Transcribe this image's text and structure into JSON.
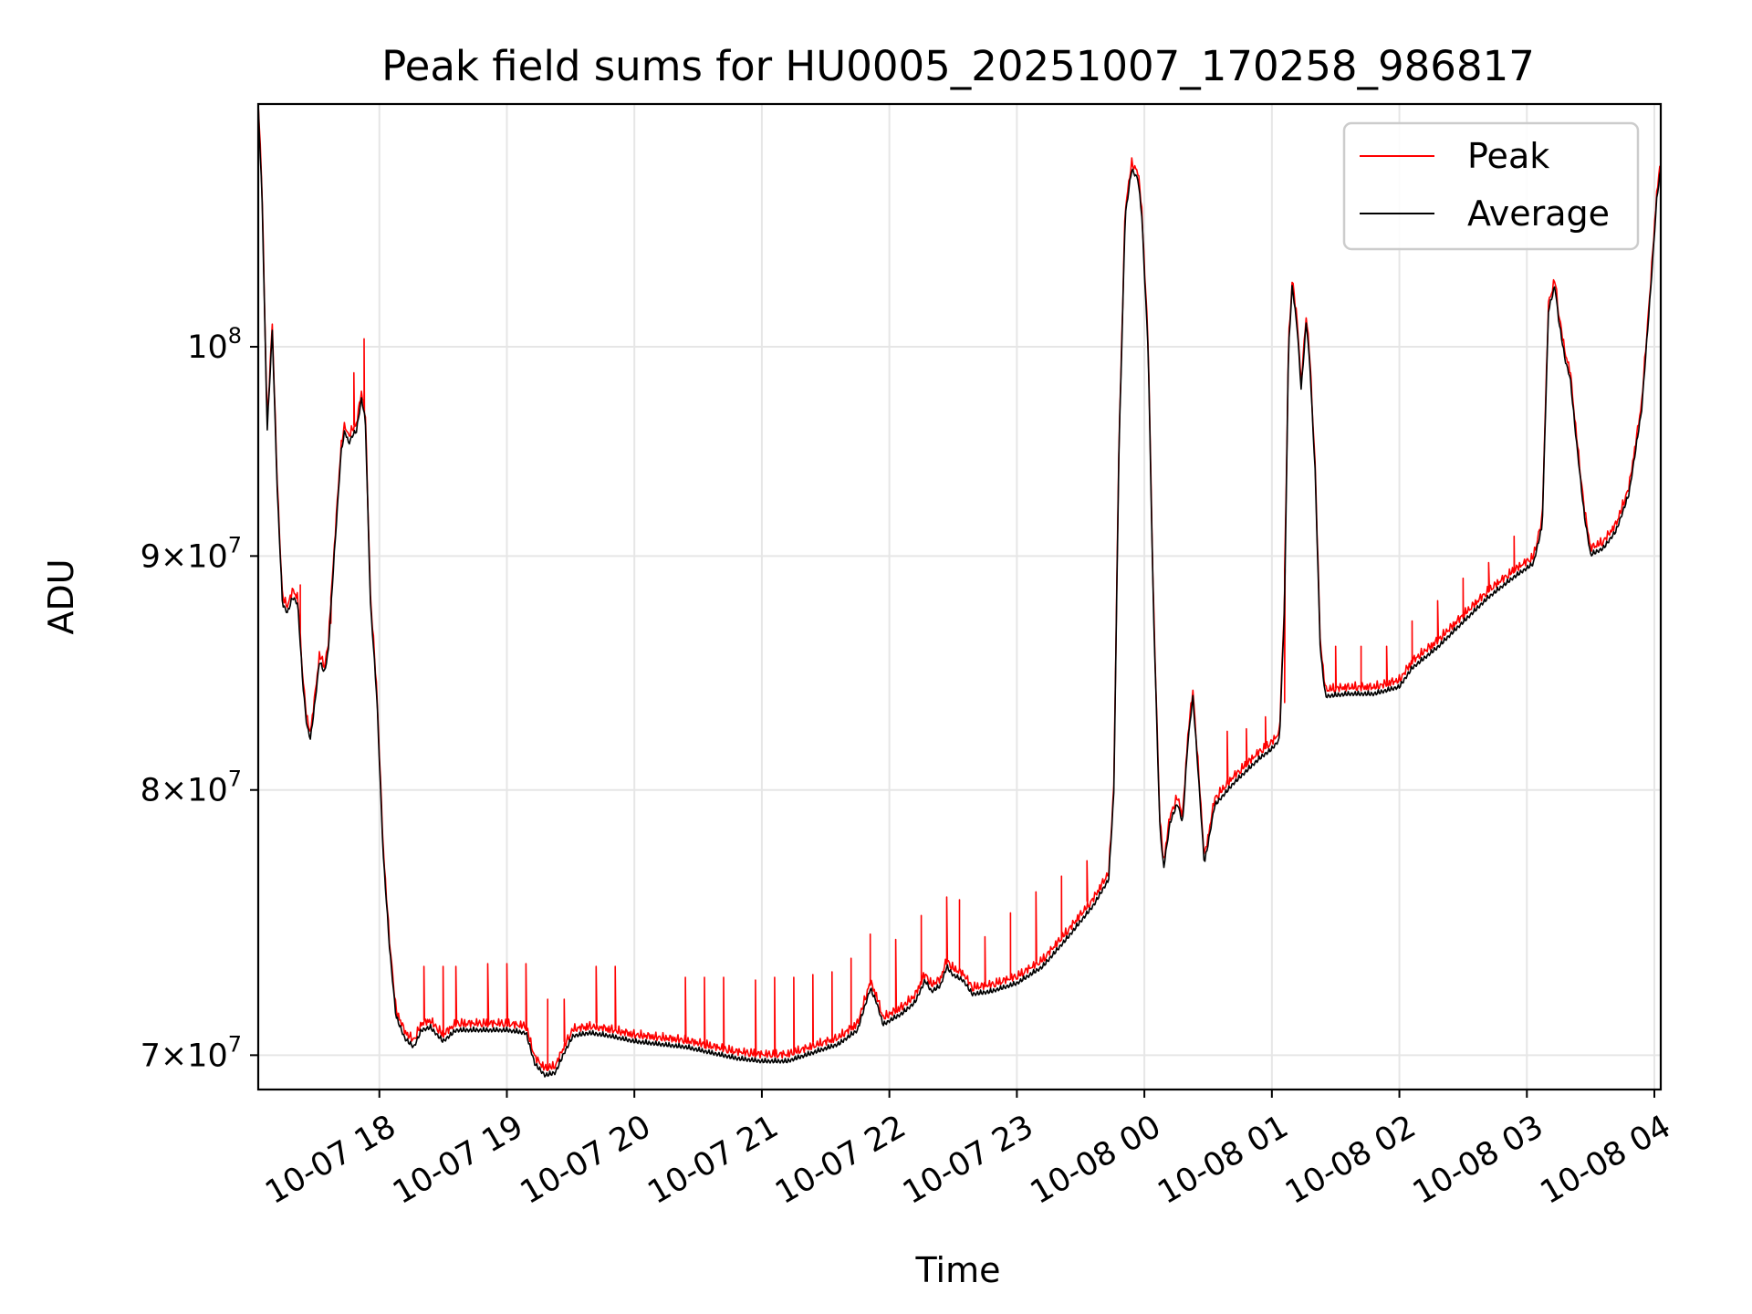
{
  "chart_data": {
    "type": "line",
    "title": "Peak field sums for HU0005_20251007_170258_986817",
    "xlabel": "Time",
    "ylabel": "ADU",
    "y_scale": "log",
    "xlim_hours": [
      17.05,
      28.05
    ],
    "ylim": [
      68800000,
      113000000
    ],
    "grid": true,
    "legend_position": "top-right",
    "x_ticks": [
      {
        "hour": 18,
        "label": "10-07 18"
      },
      {
        "hour": 19,
        "label": "10-07 19"
      },
      {
        "hour": 20,
        "label": "10-07 20"
      },
      {
        "hour": 21,
        "label": "10-07 21"
      },
      {
        "hour": 22,
        "label": "10-07 22"
      },
      {
        "hour": 23,
        "label": "10-07 23"
      },
      {
        "hour": 24,
        "label": "10-08 00"
      },
      {
        "hour": 25,
        "label": "10-08 01"
      },
      {
        "hour": 26,
        "label": "10-08 02"
      },
      {
        "hour": 27,
        "label": "10-08 03"
      },
      {
        "hour": 28,
        "label": "10-08 04"
      }
    ],
    "y_ticks": [
      {
        "value": 70000000,
        "mantissa": "7",
        "base": "10",
        "exp": "7"
      },
      {
        "value": 80000000,
        "mantissa": "8",
        "base": "10",
        "exp": "7"
      },
      {
        "value": 90000000,
        "mantissa": "9",
        "base": "10",
        "exp": "7"
      },
      {
        "value": 100000000,
        "mantissa": "",
        "base": "10",
        "exp": "8"
      }
    ],
    "series": [
      {
        "name": "Peak",
        "color": "#ff0000",
        "spikes": [
          [
            17.88,
            100400000
          ],
          [
            17.8,
            98700000
          ],
          [
            17.62,
            87000000
          ],
          [
            17.38,
            88700000
          ],
          [
            18.35,
            73200000
          ],
          [
            18.5,
            73200000
          ],
          [
            18.6,
            73200000
          ],
          [
            18.85,
            73300000
          ],
          [
            19.0,
            73300000
          ],
          [
            19.15,
            73300000
          ],
          [
            19.32,
            72000000
          ],
          [
            19.45,
            72000000
          ],
          [
            19.7,
            73200000
          ],
          [
            19.85,
            73200000
          ],
          [
            20.4,
            72800000
          ],
          [
            20.55,
            72800000
          ],
          [
            20.7,
            72800000
          ],
          [
            20.95,
            72700000
          ],
          [
            21.1,
            72800000
          ],
          [
            21.25,
            72800000
          ],
          [
            21.4,
            72900000
          ],
          [
            21.55,
            73000000
          ],
          [
            21.7,
            73500000
          ],
          [
            21.85,
            74400000
          ],
          [
            22.05,
            74200000
          ],
          [
            22.25,
            75100000
          ],
          [
            22.45,
            75800000
          ],
          [
            22.55,
            75700000
          ],
          [
            22.75,
            74300000
          ],
          [
            22.95,
            75200000
          ],
          [
            23.15,
            76000000
          ],
          [
            23.35,
            76600000
          ],
          [
            23.55,
            77200000
          ],
          [
            24.65,
            82400000
          ],
          [
            24.8,
            82500000
          ],
          [
            24.95,
            83000000
          ],
          [
            25.1,
            83600000
          ],
          [
            25.5,
            86000000
          ],
          [
            25.7,
            86000000
          ],
          [
            25.9,
            86000000
          ],
          [
            26.1,
            87100000
          ],
          [
            26.3,
            88000000
          ],
          [
            26.5,
            89000000
          ],
          [
            26.7,
            89700000
          ],
          [
            26.9,
            90900000
          ]
        ]
      },
      {
        "name": "Average",
        "color": "#000000",
        "points": [
          [
            17.05,
            113000000
          ],
          [
            17.08,
            108000000
          ],
          [
            17.12,
            96000000
          ],
          [
            17.16,
            101000000
          ],
          [
            17.2,
            93000000
          ],
          [
            17.24,
            88000000
          ],
          [
            17.28,
            87600000
          ],
          [
            17.32,
            88300000
          ],
          [
            17.36,
            88000000
          ],
          [
            17.4,
            84500000
          ],
          [
            17.43,
            82800000
          ],
          [
            17.46,
            82200000
          ],
          [
            17.5,
            84000000
          ],
          [
            17.53,
            85500000
          ],
          [
            17.57,
            85000000
          ],
          [
            17.6,
            86000000
          ],
          [
            17.65,
            90500000
          ],
          [
            17.7,
            95000000
          ],
          [
            17.73,
            96000000
          ],
          [
            17.76,
            95400000
          ],
          [
            17.79,
            95800000
          ],
          [
            17.82,
            96000000
          ],
          [
            17.86,
            97600000
          ],
          [
            17.89,
            96500000
          ],
          [
            17.93,
            88000000
          ],
          [
            17.98,
            84000000
          ],
          [
            18.03,
            77600000
          ],
          [
            18.08,
            74000000
          ],
          [
            18.13,
            71500000
          ],
          [
            18.2,
            70700000
          ],
          [
            18.27,
            70400000
          ],
          [
            18.33,
            71000000
          ],
          [
            18.4,
            71100000
          ],
          [
            18.5,
            70600000
          ],
          [
            18.6,
            71000000
          ],
          [
            18.8,
            71000000
          ],
          [
            19.0,
            71000000
          ],
          [
            19.15,
            70900000
          ],
          [
            19.22,
            69800000
          ],
          [
            19.3,
            69400000
          ],
          [
            19.38,
            69500000
          ],
          [
            19.45,
            70200000
          ],
          [
            19.52,
            70800000
          ],
          [
            19.65,
            70900000
          ],
          [
            19.8,
            70800000
          ],
          [
            20.0,
            70600000
          ],
          [
            20.2,
            70500000
          ],
          [
            20.4,
            70400000
          ],
          [
            20.6,
            70200000
          ],
          [
            20.8,
            70000000
          ],
          [
            21.0,
            69900000
          ],
          [
            21.2,
            69900000
          ],
          [
            21.4,
            70200000
          ],
          [
            21.6,
            70500000
          ],
          [
            21.75,
            71000000
          ],
          [
            21.85,
            72500000
          ],
          [
            21.9,
            72000000
          ],
          [
            21.95,
            71200000
          ],
          [
            22.1,
            71600000
          ],
          [
            22.2,
            72000000
          ],
          [
            22.28,
            72800000
          ],
          [
            22.33,
            72400000
          ],
          [
            22.4,
            72600000
          ],
          [
            22.45,
            73300000
          ],
          [
            22.5,
            73000000
          ],
          [
            22.58,
            72800000
          ],
          [
            22.65,
            72300000
          ],
          [
            22.8,
            72400000
          ],
          [
            23.0,
            72700000
          ],
          [
            23.2,
            73300000
          ],
          [
            23.4,
            74400000
          ],
          [
            23.6,
            75600000
          ],
          [
            23.72,
            76600000
          ],
          [
            23.76,
            80000000
          ],
          [
            23.8,
            95000000
          ],
          [
            23.85,
            107000000
          ],
          [
            23.9,
            109500000
          ],
          [
            23.95,
            109000000
          ],
          [
            23.98,
            107000000
          ],
          [
            24.0,
            104000000
          ],
          [
            24.03,
            100000000
          ],
          [
            24.07,
            88000000
          ],
          [
            24.12,
            78800000
          ],
          [
            24.15,
            77000000
          ],
          [
            24.2,
            78800000
          ],
          [
            24.26,
            79600000
          ],
          [
            24.3,
            78800000
          ],
          [
            24.34,
            82000000
          ],
          [
            24.38,
            84000000
          ],
          [
            24.42,
            81000000
          ],
          [
            24.47,
            77200000
          ],
          [
            24.5,
            78000000
          ],
          [
            24.55,
            79500000
          ],
          [
            24.7,
            80400000
          ],
          [
            24.9,
            81400000
          ],
          [
            25.0,
            81800000
          ],
          [
            25.06,
            82200000
          ],
          [
            25.1,
            88000000
          ],
          [
            25.13,
            100000000
          ],
          [
            25.16,
            103300000
          ],
          [
            25.2,
            101000000
          ],
          [
            25.23,
            98000000
          ],
          [
            25.27,
            101500000
          ],
          [
            25.3,
            99000000
          ],
          [
            25.34,
            94000000
          ],
          [
            25.38,
            86000000
          ],
          [
            25.42,
            84000000
          ],
          [
            25.6,
            84100000
          ],
          [
            25.8,
            84100000
          ],
          [
            26.0,
            84400000
          ],
          [
            26.1,
            85200000
          ],
          [
            26.3,
            86100000
          ],
          [
            26.5,
            87200000
          ],
          [
            26.7,
            88300000
          ],
          [
            26.9,
            89200000
          ],
          [
            27.05,
            89800000
          ],
          [
            27.12,
            91500000
          ],
          [
            27.17,
            102000000
          ],
          [
            27.22,
            103300000
          ],
          [
            27.25,
            101500000
          ],
          [
            27.3,
            99500000
          ],
          [
            27.34,
            98600000
          ],
          [
            27.38,
            96000000
          ],
          [
            27.45,
            92000000
          ],
          [
            27.5,
            90200000
          ],
          [
            27.6,
            90500000
          ],
          [
            27.7,
            91300000
          ],
          [
            27.8,
            93000000
          ],
          [
            27.9,
            97000000
          ],
          [
            27.97,
            103000000
          ],
          [
            28.02,
            108000000
          ],
          [
            28.05,
            109500000
          ]
        ]
      }
    ]
  },
  "legend": {
    "peak_label": "Peak",
    "average_label": "Average"
  }
}
